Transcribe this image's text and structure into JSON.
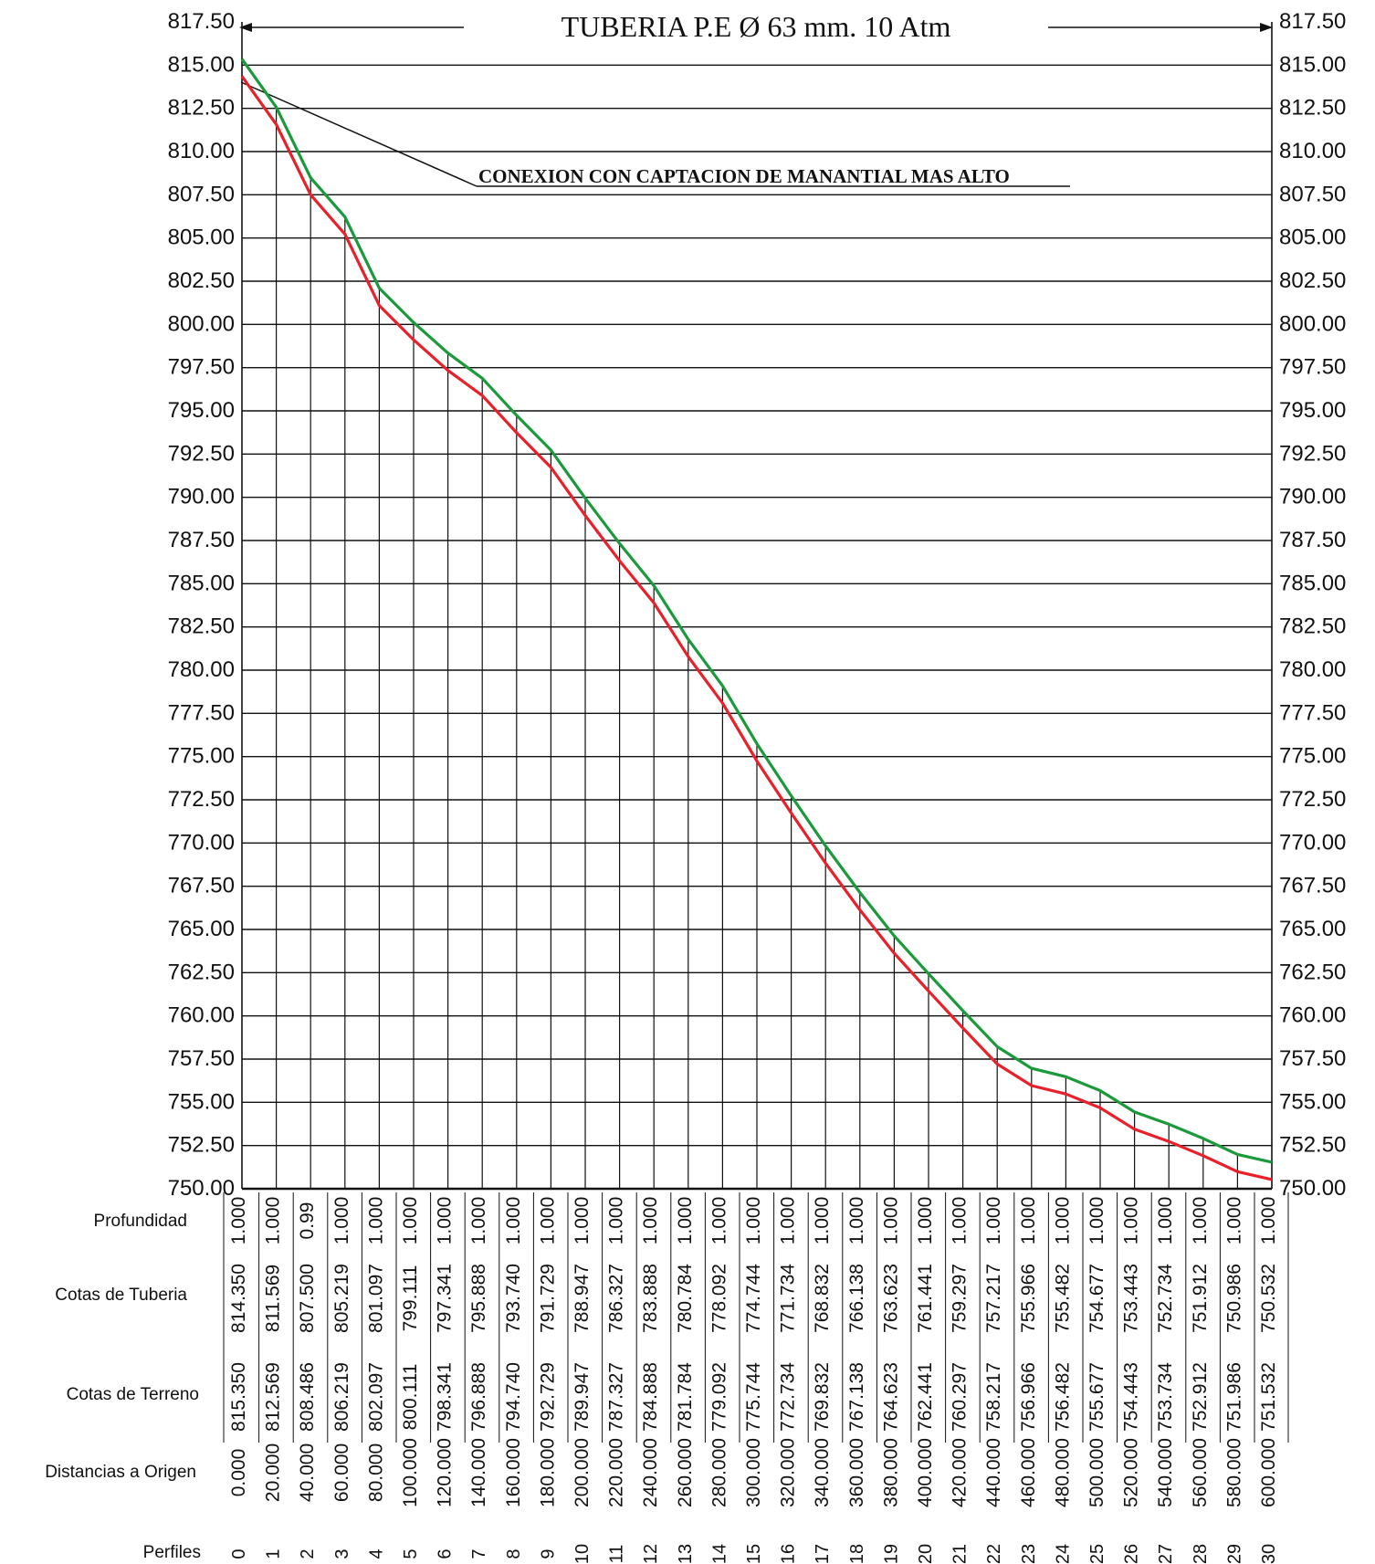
{
  "chart_data": {
    "type": "line",
    "title": "TUBERIA P.E Ø 63 mm. 10 Atm",
    "annotation": "CONEXION CON CAPTACION DE MANANTIAL MAS ALTO",
    "ylim": [
      750,
      817.5
    ],
    "y_ticks": [
      "817.50",
      "815.00",
      "812.50",
      "810.00",
      "807.50",
      "805.00",
      "802.50",
      "800.00",
      "797.50",
      "795.00",
      "792.50",
      "790.00",
      "787.50",
      "785.00",
      "782.50",
      "780.00",
      "777.50",
      "775.00",
      "772.50",
      "770.00",
      "767.50",
      "765.00",
      "762.50",
      "760.00",
      "757.50",
      "755.00",
      "752.50",
      "750.00"
    ],
    "grid": true,
    "x": [
      0,
      20,
      40,
      60,
      80,
      100,
      120,
      140,
      160,
      180,
      200,
      220,
      240,
      260,
      280,
      300,
      320,
      340,
      360,
      380,
      400,
      420,
      440,
      460,
      480,
      500,
      520,
      540,
      560,
      580,
      600
    ],
    "series": [
      {
        "key": "terreno",
        "color": "#1a9a3a",
        "values": [
          815.35,
          812.569,
          808.486,
          806.219,
          802.097,
          800.111,
          798.341,
          796.888,
          794.74,
          792.729,
          789.947,
          787.327,
          784.888,
          781.784,
          779.092,
          775.744,
          772.734,
          769.832,
          767.138,
          764.623,
          762.441,
          760.297,
          758.217,
          756.966,
          756.482,
          755.677,
          754.443,
          753.734,
          752.912,
          751.986,
          751.532
        ]
      },
      {
        "key": "tuberia",
        "color": "#e8202a",
        "values": [
          814.35,
          811.569,
          807.5,
          805.219,
          801.097,
          799.111,
          797.341,
          795.888,
          793.74,
          791.729,
          788.947,
          786.327,
          783.888,
          780.784,
          778.092,
          774.744,
          771.734,
          768.832,
          766.138,
          763.623,
          761.441,
          759.297,
          757.217,
          755.966,
          755.482,
          754.677,
          753.443,
          752.734,
          751.912,
          750.986,
          750.532
        ]
      }
    ],
    "table": {
      "row_labels": {
        "profundidad": "Profundidad",
        "cotas_tuberia": "Cotas de Tuberia",
        "cotas_terreno": "Cotas de Terreno",
        "distancias": "Distancias a Origen",
        "perfiles": "Perfiles"
      },
      "profundidad": [
        "1.000",
        "1.000",
        "0.99",
        "1.000",
        "1.000",
        "1.000",
        "1.000",
        "1.000",
        "1.000",
        "1.000",
        "1.000",
        "1.000",
        "1.000",
        "1.000",
        "1.000",
        "1.000",
        "1.000",
        "1.000",
        "1.000",
        "1.000",
        "1.000",
        "1.000",
        "1.000",
        "1.000",
        "1.000",
        "1.000",
        "1.000",
        "1.000",
        "1.000",
        "1.000",
        "1.000"
      ],
      "cotas_tuberia": [
        "814.350",
        "811.569",
        "807.500",
        "805.219",
        "801.097",
        "799.111",
        "797.341",
        "795.888",
        "793.740",
        "791.729",
        "788.947",
        "786.327",
        "783.888",
        "780.784",
        "778.092",
        "774.744",
        "771.734",
        "768.832",
        "766.138",
        "763.623",
        "761.441",
        "759.297",
        "757.217",
        "755.966",
        "755.482",
        "754.677",
        "753.443",
        "752.734",
        "751.912",
        "750.986",
        "750.532"
      ],
      "cotas_terreno": [
        "815.350",
        "812.569",
        "808.486",
        "806.219",
        "802.097",
        "800.111",
        "798.341",
        "796.888",
        "794.740",
        "792.729",
        "789.947",
        "787.327",
        "784.888",
        "781.784",
        "779.092",
        "775.744",
        "772.734",
        "769.832",
        "767.138",
        "764.623",
        "762.441",
        "760.297",
        "758.217",
        "756.966",
        "756.482",
        "755.677",
        "754.443",
        "753.734",
        "752.912",
        "751.986",
        "751.532"
      ],
      "distancias": [
        "0.000",
        "20.000",
        "40.000",
        "60.000",
        "80.000",
        "100.000",
        "120.000",
        "140.000",
        "160.000",
        "180.000",
        "200.000",
        "220.000",
        "240.000",
        "260.000",
        "280.000",
        "300.000",
        "320.000",
        "340.000",
        "360.000",
        "380.000",
        "400.000",
        "420.000",
        "440.000",
        "460.000",
        "480.000",
        "500.000",
        "520.000",
        "540.000",
        "560.000",
        "580.000",
        "600.000"
      ],
      "perfiles": [
        "0",
        "1",
        "2",
        "3",
        "4",
        "5",
        "6",
        "7",
        "8",
        "9",
        "10",
        "11",
        "12",
        "13",
        "14",
        "15",
        "16",
        "17",
        "18",
        "19",
        "20",
        "21",
        "22",
        "23",
        "24",
        "25",
        "26",
        "27",
        "28",
        "29",
        "30"
      ]
    }
  }
}
